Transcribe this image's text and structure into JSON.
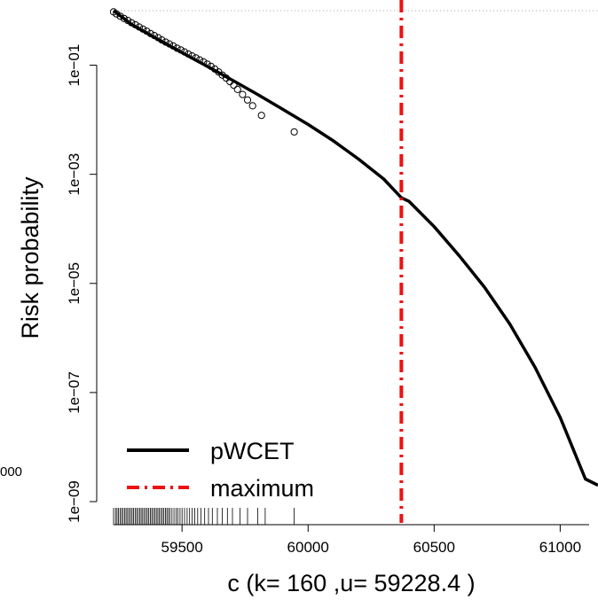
{
  "chart_data": {
    "type": "line",
    "xlabel": "c (k= 160 ,u= 59228.4 )",
    "ylabel": "Risk probability",
    "y_scale": "log",
    "xlim": [
      59228.4,
      61150
    ],
    "ylim": [
      1e-09,
      1
    ],
    "x_ticks": [
      59500,
      60000,
      60500,
      61000
    ],
    "x_tick_labels": [
      "59500",
      "60000",
      "60500",
      "61000"
    ],
    "y_ticks": [
      0.1,
      0.001,
      1e-05,
      1e-07,
      1e-09
    ],
    "y_tick_labels": [
      "1e−01",
      "1e−03",
      "1e−05",
      "1e−07",
      "1e−09"
    ],
    "stray_label": "000",
    "colors": {
      "pwcet": "#000000",
      "maximum": "#ee1111",
      "reference": "#aaaaaa"
    },
    "legend": {
      "position": "bottom-left",
      "entries": [
        {
          "label": "pWCET",
          "style": "solid"
        },
        {
          "label": "maximum",
          "style": "dashdot"
        }
      ]
    },
    "series": [
      {
        "name": "pWCET",
        "style": "solid",
        "x": [
          59228.4,
          59300,
          59400,
          59500,
          59600,
          59700,
          59800,
          59900,
          60000,
          60100,
          60200,
          60300,
          60370,
          60400,
          60500,
          60600,
          60700,
          60800,
          60900,
          61000,
          61100,
          61150
        ],
        "y": [
          1.0,
          0.56,
          0.305,
          0.17,
          0.095,
          0.053,
          0.029,
          0.0155,
          0.0082,
          0.0041,
          0.0019,
          0.00082,
          0.00037,
          0.00032,
          0.00011,
          3.2e-05,
          8.5e-06,
          1.8e-06,
          2.9e-07,
          3.5e-08,
          2.6e-09,
          2e-09
        ]
      },
      {
        "name": "observations",
        "style": "points",
        "x": [
          59228.4,
          59240,
          59255,
          59270,
          59285,
          59300,
          59315,
          59330,
          59345,
          59360,
          59375,
          59390,
          59405,
          59420,
          59435,
          59450,
          59465,
          59480,
          59495,
          59510,
          59525,
          59540,
          59555,
          59570,
          59585,
          59600,
          59615,
          59630,
          59645,
          59660,
          59675,
          59690,
          59705,
          59720,
          59740,
          59760,
          59780,
          59815,
          59945
        ],
        "y": [
          0.95,
          0.87,
          0.79,
          0.72,
          0.66,
          0.6,
          0.55,
          0.5,
          0.46,
          0.42,
          0.38,
          0.35,
          0.32,
          0.29,
          0.265,
          0.245,
          0.225,
          0.205,
          0.19,
          0.175,
          0.16,
          0.148,
          0.136,
          0.125,
          0.115,
          0.105,
          0.095,
          0.085,
          0.075,
          0.066,
          0.058,
          0.05,
          0.043,
          0.036,
          0.029,
          0.023,
          0.018,
          0.012,
          0.006
        ]
      }
    ],
    "maximum_x": 60370,
    "reference_y": 1.0,
    "rug": [
      59228.4,
      59236,
      59242,
      59248,
      59254,
      59260,
      59266,
      59272,
      59278,
      59284,
      59290,
      59296,
      59302,
      59308,
      59314,
      59320,
      59326,
      59332,
      59338,
      59344,
      59350,
      59356,
      59362,
      59368,
      59374,
      59380,
      59386,
      59392,
      59398,
      59404,
      59410,
      59416,
      59422,
      59428,
      59434,
      59440,
      59446,
      59452,
      59460,
      59468,
      59476,
      59484,
      59492,
      59500,
      59510,
      59520,
      59530,
      59540,
      59550,
      59562,
      59575,
      59590,
      59605,
      59620,
      59640,
      59660,
      59680,
      59700,
      59730,
      59760,
      59800,
      59830,
      59945
    ]
  }
}
